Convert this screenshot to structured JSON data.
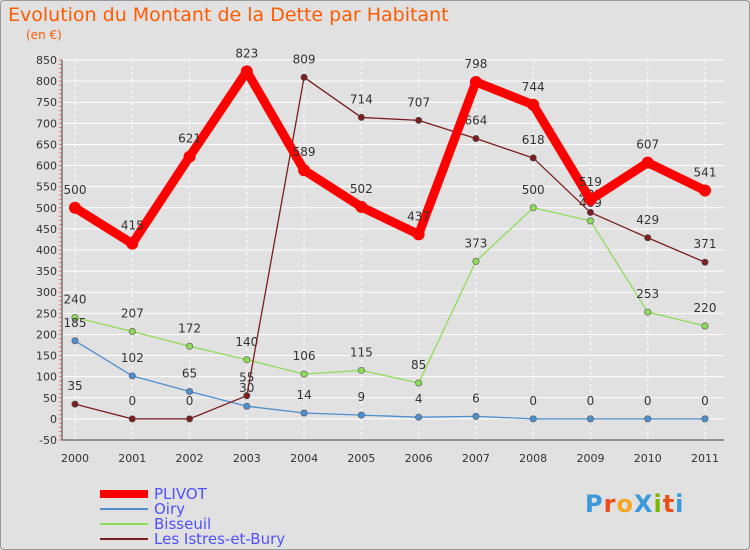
{
  "header": {
    "title": "Evolution du Montant de la Dette par Habitant",
    "subtitle": "(en €)"
  },
  "logo": {
    "text": "ProXiti",
    "colors": [
      "#3a9ad9",
      "#e94e1b",
      "#f5a623",
      "#3a9ad9",
      "#7ab800",
      "#e94e1b",
      "#3a9ad9"
    ]
  },
  "chart_data": {
    "type": "line",
    "title": "Evolution du Montant de la Dette par Habitant",
    "ylabel": "(en €)",
    "xlabel": "",
    "categories": [
      "2000",
      "2001",
      "2002",
      "2003",
      "2004",
      "2005",
      "2006",
      "2007",
      "2008",
      "2009",
      "2010",
      "2011"
    ],
    "ylim": [
      -50,
      850
    ],
    "yticks": [
      -50,
      0,
      50,
      100,
      150,
      200,
      250,
      300,
      350,
      400,
      450,
      500,
      550,
      600,
      650,
      700,
      750,
      800,
      850
    ],
    "grid": true,
    "legend_position": "bottom-left",
    "series": [
      {
        "name": "PLIVOT",
        "color": "#ff0000",
        "values": [
          500,
          415,
          621,
          823,
          589,
          502,
          437,
          798,
          744,
          519,
          607,
          541
        ]
      },
      {
        "name": "Oiry",
        "color": "#4f8fce",
        "values": [
          185,
          102,
          65,
          30,
          14,
          9,
          4,
          6,
          0,
          0,
          0,
          0
        ]
      },
      {
        "name": "Bisseuil",
        "color": "#8fdc5a",
        "values": [
          240,
          207,
          172,
          140,
          106,
          115,
          85,
          373,
          500,
          469,
          253,
          220
        ]
      },
      {
        "name": "Les Istres-et-Bury",
        "color": "#7a1e1e",
        "values": [
          35,
          0,
          0,
          55,
          809,
          714,
          707,
          664,
          618,
          489,
          429,
          371
        ]
      }
    ]
  }
}
